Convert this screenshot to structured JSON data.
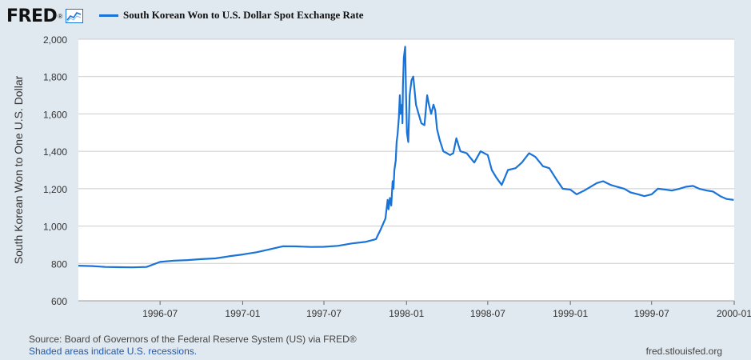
{
  "brand": {
    "logo": "FRED",
    "logo_mark": "®",
    "icon": "chart-line-icon"
  },
  "legend": {
    "label": "South Korean Won to U.S. Dollar Spot Exchange Rate",
    "color": "#1a74d8"
  },
  "footer": {
    "source": "Source: Board of Governors of the Federal Reserve System (US) via FRED®",
    "recessions": "Shaded areas indicate U.S. recessions.",
    "site": "fred.stlouisfed.org"
  },
  "chart_data": {
    "type": "line",
    "title": "",
    "ylabel": "South Korean Won to One U.S. Dollar",
    "xlabel": "",
    "ylim": [
      600,
      2000
    ],
    "xlim": [
      "1996-01-01",
      "2000-01-01"
    ],
    "yticks": [
      600,
      800,
      1000,
      1200,
      1400,
      1600,
      1800,
      2000
    ],
    "ytick_labels": [
      "600",
      "800",
      "1,000",
      "1,200",
      "1,400",
      "1,600",
      "1,800",
      "2,000"
    ],
    "xticks": [
      "1996-07-01",
      "1997-01-01",
      "1997-07-01",
      "1998-01-01",
      "1998-07-01",
      "1999-01-01",
      "1999-07-01",
      "2000-01-01"
    ],
    "xtick_labels": [
      "1996-07",
      "1997-01",
      "1997-07",
      "1998-01",
      "1998-07",
      "1999-01",
      "1999-07",
      "2000-01"
    ],
    "grid": true,
    "legend_position": "top-left",
    "series": [
      {
        "color": "#1a74d8",
        "x": [
          "1996-01-01",
          "1996-02-01",
          "1996-03-01",
          "1996-04-01",
          "1996-05-01",
          "1996-06-01",
          "1996-07-01",
          "1996-08-01",
          "1996-09-01",
          "1996-10-01",
          "1996-11-01",
          "1996-12-01",
          "1997-01-01",
          "1997-02-01",
          "1997-03-01",
          "1997-04-01",
          "1997-05-01",
          "1997-06-01",
          "1997-07-01",
          "1997-08-01",
          "1997-09-01",
          "1997-10-01",
          "1997-10-25",
          "1997-11-05",
          "1997-11-15",
          "1997-11-20",
          "1997-11-22",
          "1997-11-25",
          "1997-11-28",
          "1997-12-01",
          "1997-12-03",
          "1997-12-05",
          "1997-12-08",
          "1997-12-10",
          "1997-12-12",
          "1997-12-15",
          "1997-12-17",
          "1997-12-19",
          "1997-12-22",
          "1997-12-23",
          "1997-12-24",
          "1997-12-26",
          "1997-12-29",
          "1997-12-31",
          "1998-01-02",
          "1998-01-05",
          "1998-01-08",
          "1998-01-12",
          "1998-01-16",
          "1998-01-22",
          "1998-01-28",
          "1998-02-03",
          "1998-02-10",
          "1998-02-16",
          "1998-02-20",
          "1998-02-25",
          "1998-03-02",
          "1998-03-06",
          "1998-03-10",
          "1998-03-16",
          "1998-03-24",
          "1998-04-01",
          "1998-04-08",
          "1998-04-15",
          "1998-04-22",
          "1998-05-01",
          "1998-05-15",
          "1998-06-01",
          "1998-06-15",
          "1998-07-01",
          "1998-07-10",
          "1998-07-20",
          "1998-08-01",
          "1998-08-15",
          "1998-09-01",
          "1998-09-15",
          "1998-10-01",
          "1998-10-15",
          "1998-11-01",
          "1998-11-15",
          "1998-12-01",
          "1998-12-15",
          "1999-01-01",
          "1999-01-15",
          "1999-02-01",
          "1999-03-01",
          "1999-03-15",
          "1999-04-01",
          "1999-04-15",
          "1999-05-01",
          "1999-05-15",
          "1999-06-01",
          "1999-06-15",
          "1999-07-01",
          "1999-07-15",
          "1999-08-01",
          "1999-08-15",
          "1999-09-01",
          "1999-09-15",
          "1999-10-01",
          "1999-10-15",
          "1999-11-01",
          "1999-11-15",
          "1999-12-01",
          "1999-12-15",
          "1999-12-31"
        ],
        "y": [
          788,
          786,
          781,
          780,
          779,
          781,
          808,
          815,
          818,
          823,
          827,
          838,
          848,
          860,
          875,
          892,
          891,
          888,
          889,
          894,
          907,
          915,
          930,
          985,
          1040,
          1140,
          1090,
          1150,
          1110,
          1240,
          1200,
          1300,
          1350,
          1450,
          1490,
          1580,
          1700,
          1600,
          1650,
          1550,
          1750,
          1900,
          1960,
          1700,
          1500,
          1450,
          1700,
          1780,
          1800,
          1650,
          1600,
          1550,
          1540,
          1700,
          1650,
          1600,
          1650,
          1620,
          1520,
          1460,
          1400,
          1390,
          1380,
          1390,
          1470,
          1400,
          1390,
          1340,
          1400,
          1380,
          1300,
          1260,
          1220,
          1300,
          1310,
          1340,
          1390,
          1370,
          1320,
          1310,
          1250,
          1200,
          1195,
          1170,
          1190,
          1230,
          1240,
          1220,
          1210,
          1200,
          1180,
          1170,
          1160,
          1170,
          1200,
          1195,
          1190,
          1200,
          1210,
          1215,
          1200,
          1190,
          1185,
          1160,
          1145,
          1140
        ]
      }
    ]
  }
}
